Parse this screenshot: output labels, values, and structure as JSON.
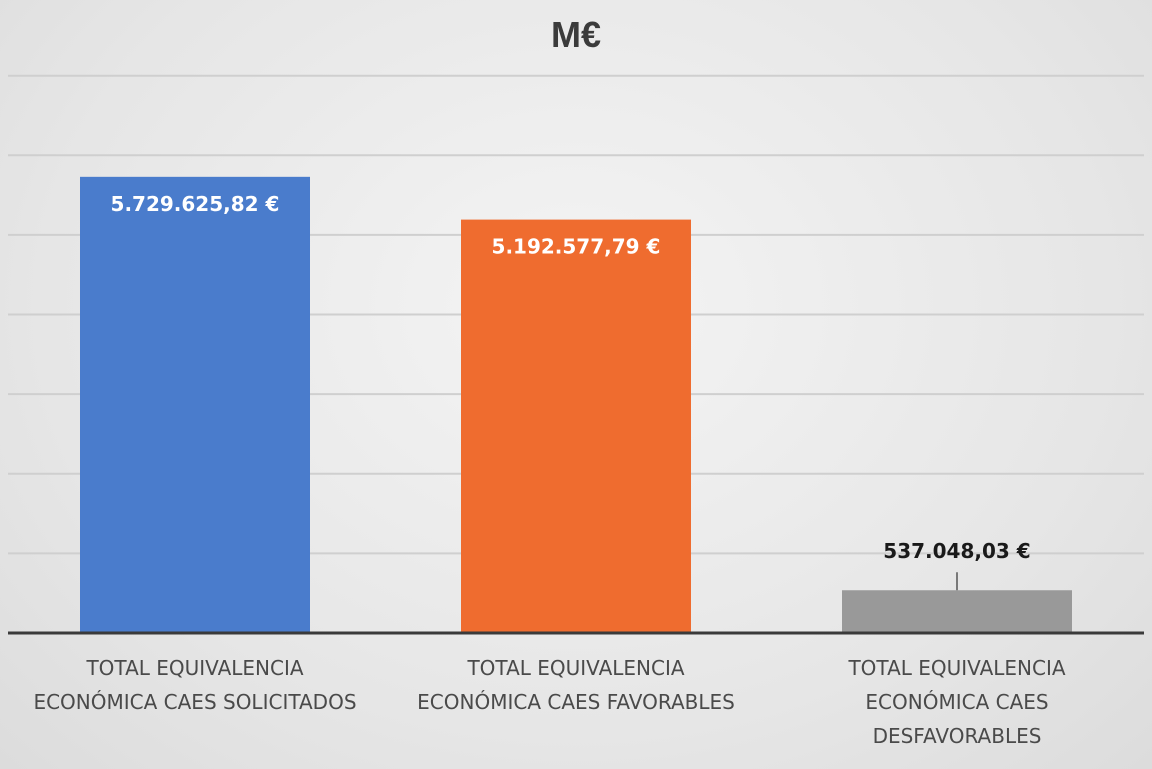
{
  "chart_data": {
    "type": "bar",
    "title": "M€",
    "xlabel": "",
    "ylabel": "",
    "ylim": [
      0,
      7800000
    ],
    "grid": true,
    "categories": [
      [
        "TOTAL EQUIVALENCIA",
        "ECONÓMICA CAES SOLICITADOS"
      ],
      [
        "TOTAL EQUIVALENCIA",
        "ECONÓMICA CAES FAVORABLES"
      ],
      [
        "TOTAL EQUIVALENCIA",
        "ECONÓMICA CAES",
        "DESFAVORABLES"
      ]
    ],
    "values": [
      5729625.82,
      5192577.79,
      537048.03
    ],
    "data_labels": [
      "5.729.625,82 €",
      "5.192.577,79 €",
      "537.048,03 €"
    ],
    "colors": [
      "#4a7ccc",
      "#ef6c2f",
      "#999999"
    ],
    "label_colors": [
      "#ffffff",
      "#ffffff",
      "#1a1a1a"
    ],
    "label_position": [
      "inside-top",
      "inside-top",
      "above"
    ]
  }
}
